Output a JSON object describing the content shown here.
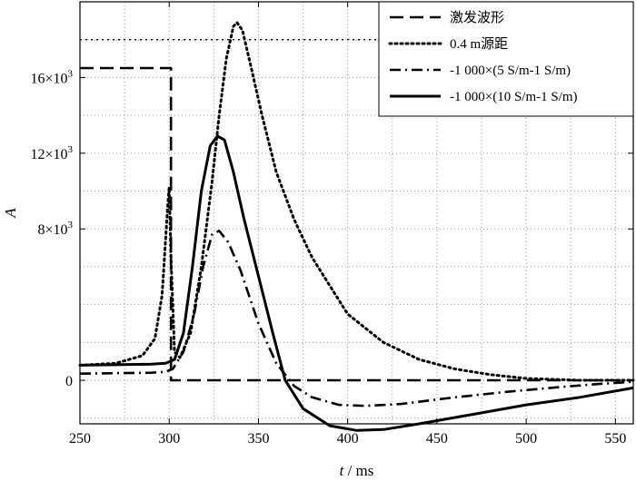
{
  "chart_data": {
    "type": "line",
    "xlabel": "t / ms",
    "ylabel": "A",
    "xlim": [
      250,
      560
    ],
    "ylim": [
      -2300,
      20000
    ],
    "grid": true,
    "legend_position": "top-right",
    "x_ticks": [
      250,
      300,
      350,
      400,
      450,
      500,
      550
    ],
    "y_tick_labels": [
      {
        "value": 0,
        "label": "0"
      },
      {
        "value": 8000,
        "label": "8×10³"
      },
      {
        "value": 12000,
        "label": "12×10³"
      },
      {
        "value": 16000,
        "label": "16×10³"
      }
    ],
    "series": [
      {
        "name": "激发波形",
        "style": "dashed",
        "points": [
          [
            250,
            16500
          ],
          [
            301,
            16500
          ],
          [
            301,
            0
          ],
          [
            560,
            0
          ]
        ]
      },
      {
        "name": "0.4 m源距",
        "style": "dotted",
        "points": [
          [
            250,
            800
          ],
          [
            270,
            900
          ],
          [
            285,
            1300
          ],
          [
            292,
            2200
          ],
          [
            296,
            4500
          ],
          [
            299,
            9000
          ],
          [
            300,
            10200
          ],
          [
            301,
            6500
          ],
          [
            303,
            1500
          ],
          [
            306,
            1200
          ],
          [
            312,
            2500
          ],
          [
            318,
            6000
          ],
          [
            324,
            10500
          ],
          [
            328,
            14000
          ],
          [
            332,
            17000
          ],
          [
            336,
            18700
          ],
          [
            338,
            18900
          ],
          [
            341,
            18500
          ],
          [
            346,
            16500
          ],
          [
            352,
            14000
          ],
          [
            360,
            11000
          ],
          [
            370,
            8500
          ],
          [
            380,
            6500
          ],
          [
            390,
            5000
          ],
          [
            400,
            3500
          ],
          [
            420,
            2000
          ],
          [
            440,
            1100
          ],
          [
            460,
            600
          ],
          [
            480,
            300
          ],
          [
            500,
            100
          ],
          [
            530,
            0
          ],
          [
            560,
            0
          ]
        ]
      },
      {
        "name": "-1 000×(5 S/m-1 S/m)",
        "style": "dashdot",
        "points": [
          [
            250,
            350
          ],
          [
            290,
            400
          ],
          [
            298,
            450
          ],
          [
            302,
            600
          ],
          [
            308,
            1500
          ],
          [
            314,
            3500
          ],
          [
            319,
            6000
          ],
          [
            324,
            7700
          ],
          [
            328,
            7900
          ],
          [
            333,
            7300
          ],
          [
            340,
            5800
          ],
          [
            350,
            3000
          ],
          [
            360,
            900
          ],
          [
            370,
            -300
          ],
          [
            380,
            -900
          ],
          [
            395,
            -1300
          ],
          [
            410,
            -1350
          ],
          [
            430,
            -1250
          ],
          [
            460,
            -900
          ],
          [
            490,
            -600
          ],
          [
            520,
            -350
          ],
          [
            540,
            -200
          ],
          [
            560,
            -80
          ]
        ]
      },
      {
        "name": "-1 000×(10 S/m-1 S/m)",
        "style": "solid",
        "points": [
          [
            250,
            800
          ],
          [
            290,
            850
          ],
          [
            298,
            900
          ],
          [
            303,
            1100
          ],
          [
            308,
            2500
          ],
          [
            313,
            6000
          ],
          [
            318,
            10000
          ],
          [
            323,
            12400
          ],
          [
            327,
            12900
          ],
          [
            331,
            12700
          ],
          [
            336,
            11000
          ],
          [
            342,
            8500
          ],
          [
            350,
            5500
          ],
          [
            358,
            2500
          ],
          [
            365,
            0
          ],
          [
            375,
            -1500
          ],
          [
            390,
            -2400
          ],
          [
            405,
            -2650
          ],
          [
            420,
            -2600
          ],
          [
            440,
            -2300
          ],
          [
            470,
            -1800
          ],
          [
            500,
            -1300
          ],
          [
            530,
            -900
          ],
          [
            560,
            -400
          ]
        ]
      }
    ],
    "reference_lines": [
      {
        "style": "dotted",
        "y": 18000
      }
    ]
  }
}
